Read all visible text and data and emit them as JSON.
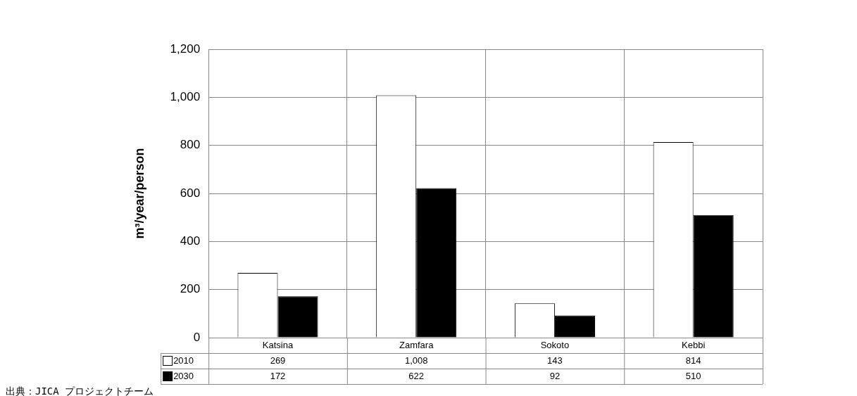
{
  "chart_data": {
    "type": "bar",
    "ylabel": "m³/year/person",
    "categories": [
      "Katsina",
      "Zamfara",
      "Sokoto",
      "Kebbi"
    ],
    "series": [
      {
        "name": "2010",
        "color": "#ffffff",
        "values": [
          269,
          1008,
          143,
          814
        ],
        "value_labels": [
          "269",
          "1,008",
          "143",
          "814"
        ]
      },
      {
        "name": "2030",
        "color": "#000000",
        "values": [
          172,
          622,
          92,
          510
        ],
        "value_labels": [
          "172",
          "622",
          "92",
          "510"
        ]
      }
    ],
    "ylim": [
      0,
      1200
    ],
    "yticks": [
      0,
      200,
      400,
      600,
      800,
      {
        "value": 1000,
        "label": "1,000"
      },
      {
        "value": 1200,
        "label": "1,200"
      }
    ],
    "grid": true,
    "legend": "bottom",
    "data_labels": true,
    "annotations": [
      "出典：JICA プロジェクトチーム"
    ]
  }
}
